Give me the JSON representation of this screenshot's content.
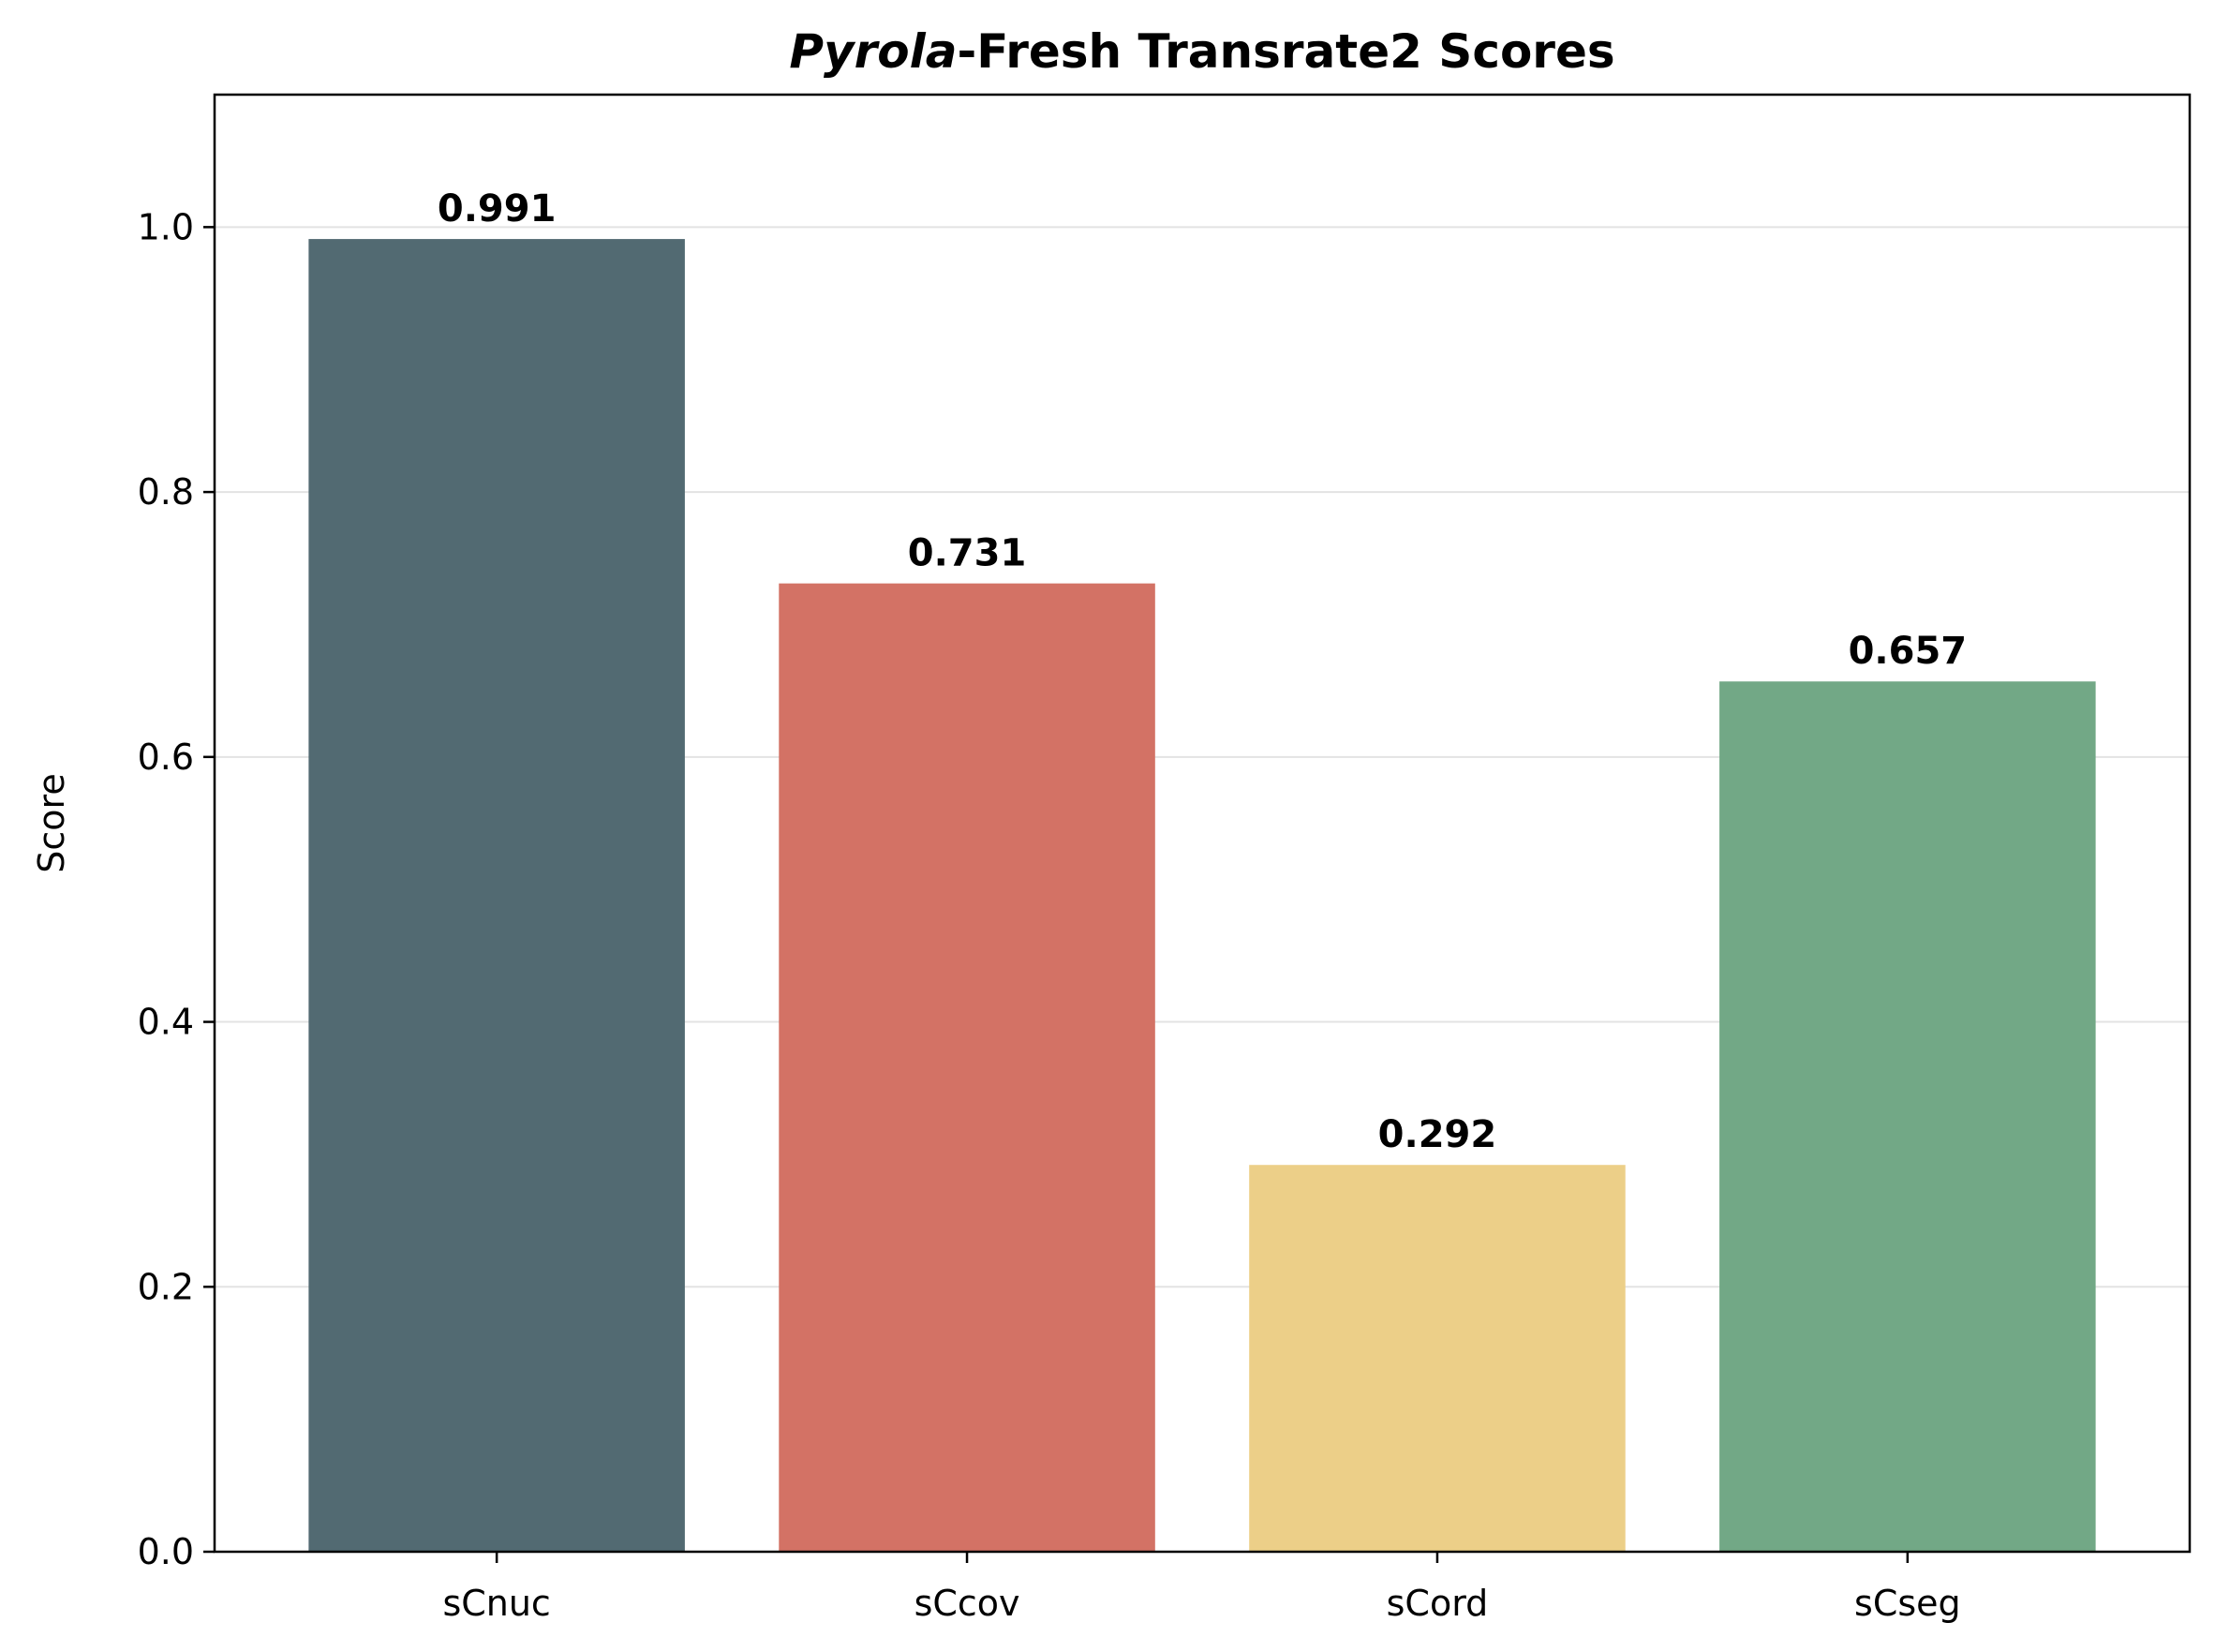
{
  "chart_data": {
    "type": "bar",
    "title_italic": "Pyrola",
    "title_rest": "-Fresh Transrate2 Scores",
    "xlabel": "",
    "ylabel": "Score",
    "categories": [
      "sCnuc",
      "sCcov",
      "sCord",
      "sCseg"
    ],
    "values": [
      0.991,
      0.731,
      0.292,
      0.657
    ],
    "value_labels": [
      "0.991",
      "0.731",
      "0.292",
      "0.657"
    ],
    "colors": [
      "#526a72",
      "#d37265",
      "#eccf88",
      "#72a886"
    ],
    "ylim": [
      0,
      1.1
    ],
    "yticks": [
      0.0,
      0.2,
      0.4,
      0.6,
      0.8,
      1.0
    ],
    "ytick_labels": [
      "0.0",
      "0.2",
      "0.4",
      "0.6",
      "0.8",
      "1.0"
    ],
    "grid": "horizontal"
  }
}
